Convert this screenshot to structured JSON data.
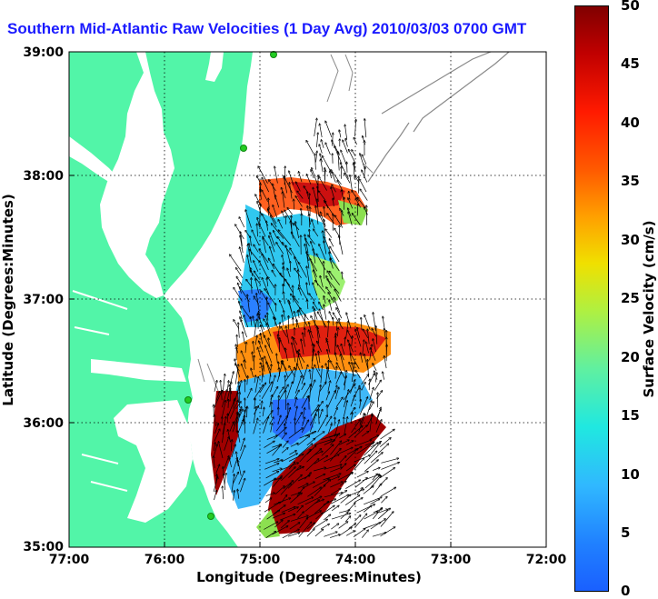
{
  "title": "Southern Mid-Atlantic Raw Velocities (1 Day Avg) 2010/03/03 0700 GMT",
  "axes": {
    "xlabel": "Longitude (Degrees:Minutes)",
    "ylabel": "Latitude (Degrees:Minutes)",
    "x_ticks": [
      "77:00",
      "76:00",
      "75:00",
      "74:00",
      "73:00",
      "72:00"
    ],
    "y_ticks": [
      "39:00",
      "38:00",
      "37:00",
      "36:00",
      "35:00"
    ]
  },
  "colorbar": {
    "label": "Surface Velocity (cm/s)",
    "ticks": [
      "50",
      "45",
      "40",
      "35",
      "30",
      "25",
      "20",
      "15",
      "10",
      "5",
      "0"
    ],
    "range": [
      0,
      50
    ]
  },
  "colors": {
    "land": "#52f5a8",
    "water": "#ffffff",
    "coast_contour": "#8a8a8a",
    "station": "#22cc22",
    "title": "#1a1aff"
  },
  "chart_data": {
    "type": "heatmap",
    "xlim": [
      "77:00",
      "72:00"
    ],
    "ylim": [
      "35:00",
      "39:00"
    ],
    "grid": true,
    "colorbar_range": [
      0,
      50
    ]
  }
}
